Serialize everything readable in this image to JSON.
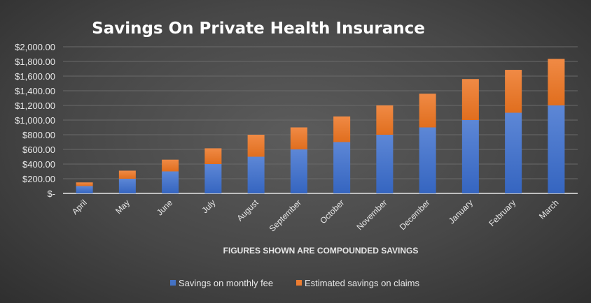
{
  "chart_data": {
    "type": "bar",
    "stacked": true,
    "title": "Savings On Private Health Insurance",
    "xlabel": "FIGURES SHOWN ARE COMPOUNDED SAVINGS",
    "ylabel": "",
    "ylim": [
      0,
      2000
    ],
    "yticks": [
      0,
      200,
      400,
      600,
      800,
      1000,
      1200,
      1400,
      1600,
      1800,
      2000
    ],
    "ytick_labels": [
      "$-",
      "$200.00",
      "$400.00",
      "$600.00",
      "$800.00",
      "$1,000.00",
      "$1,200.00",
      "$1,400.00",
      "$1,600.00",
      "$1,800.00",
      "$2,000.00"
    ],
    "grid": true,
    "legend_position": "bottom",
    "categories": [
      "April",
      "May",
      "June",
      "July",
      "August",
      "September",
      "October",
      "November",
      "December",
      "January",
      "February",
      "March"
    ],
    "series": [
      {
        "name": "Savings on monthly fee",
        "color": "#4472C4",
        "values": [
          100,
          200,
          300,
          400,
          500,
          600,
          700,
          800,
          900,
          1000,
          1100,
          1200
        ]
      },
      {
        "name": "Estimated savings on claims",
        "color": "#ED7D31",
        "values": [
          50,
          110,
          160,
          215,
          300,
          300,
          350,
          400,
          460,
          560,
          585,
          635
        ]
      }
    ]
  }
}
